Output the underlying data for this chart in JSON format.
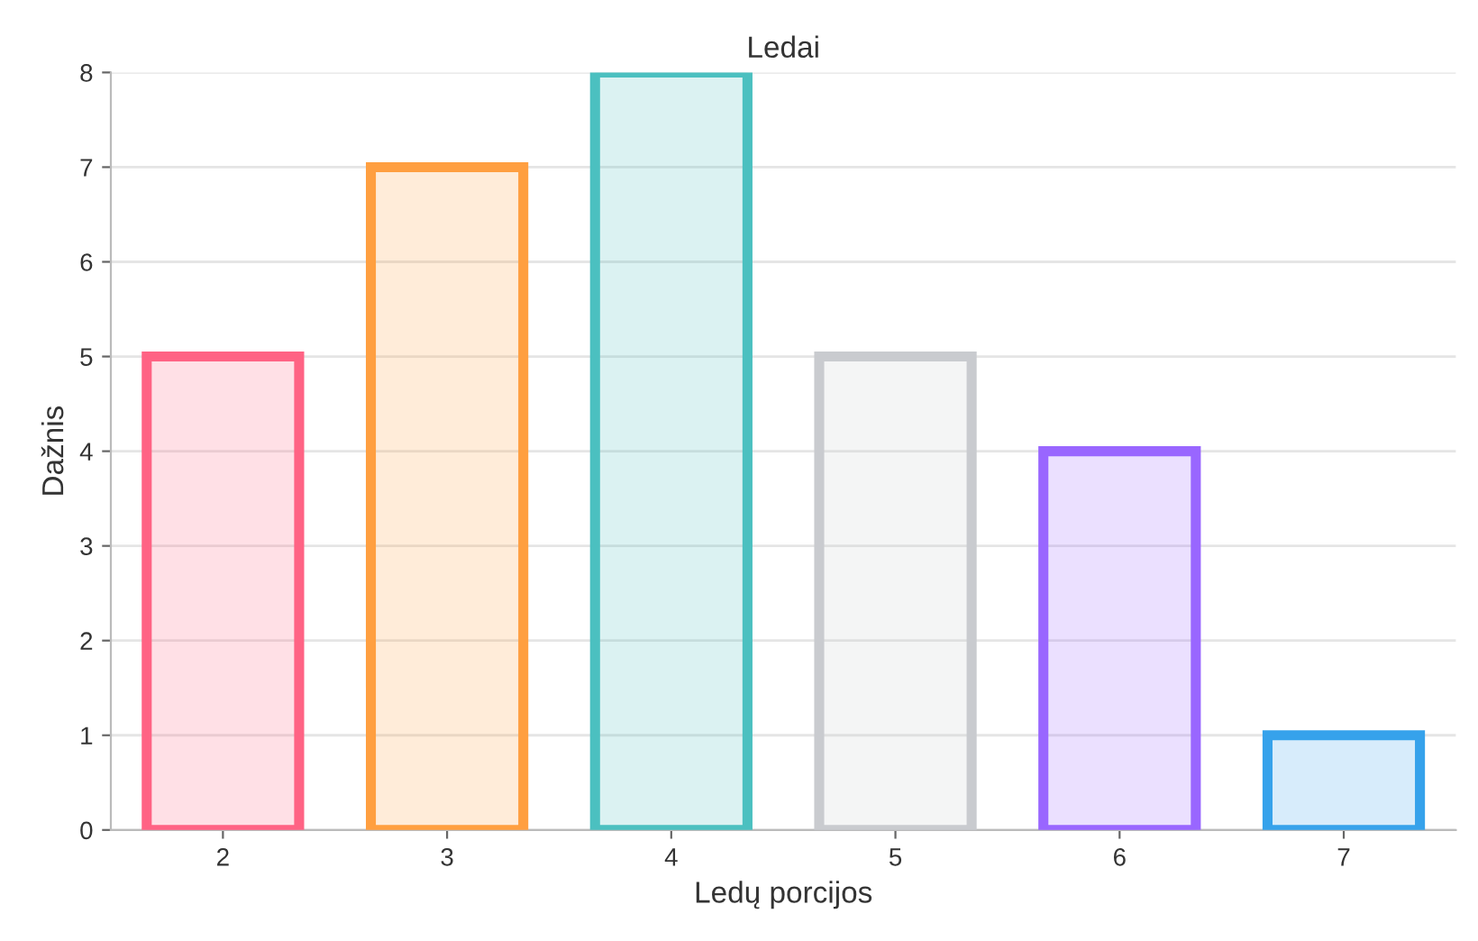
{
  "chart_data": {
    "type": "bar",
    "title": "Ledai",
    "xlabel": "Ledų porcijos",
    "ylabel": "Dažnis",
    "categories": [
      "2",
      "3",
      "4",
      "5",
      "6",
      "7"
    ],
    "values": [
      5,
      7,
      8,
      5,
      4,
      1
    ],
    "colors": [
      "#ff6384",
      "#ff9f40",
      "#4bc0c0",
      "#c9cbcf",
      "#9966ff",
      "#36a2eb"
    ],
    "ylim": [
      0,
      8
    ],
    "yticks": [
      0,
      1,
      2,
      3,
      4,
      5,
      6,
      7,
      8
    ],
    "grid": "y",
    "legend": false
  }
}
